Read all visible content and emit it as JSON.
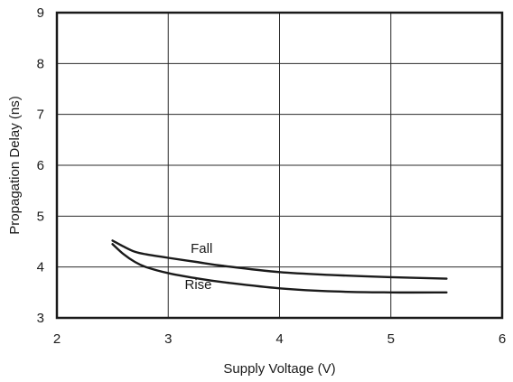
{
  "chart_data": {
    "type": "line",
    "title": "",
    "xlabel": "Supply Voltage (V)",
    "ylabel": "Propagation Delay (ns)",
    "xlim": [
      2,
      6
    ],
    "ylim": [
      3,
      9
    ],
    "x_ticks": [
      "2",
      "3",
      "4",
      "5",
      "6"
    ],
    "y_ticks": [
      "3",
      "4",
      "5",
      "6",
      "7",
      "8",
      "9"
    ],
    "grid": true,
    "legend": "none",
    "series": [
      {
        "name": "Fall",
        "x": [
          2.5,
          2.6,
          2.7,
          2.8,
          3.0,
          3.25,
          3.5,
          4.0,
          4.5,
          5.0,
          5.5
        ],
        "y": [
          4.52,
          4.4,
          4.3,
          4.25,
          4.18,
          4.1,
          4.02,
          3.9,
          3.84,
          3.8,
          3.77
        ]
      },
      {
        "name": "Rise",
        "x": [
          2.5,
          2.6,
          2.7,
          2.8,
          3.0,
          3.25,
          3.5,
          4.0,
          4.5,
          5.0,
          5.5
        ],
        "y": [
          4.45,
          4.25,
          4.1,
          4.0,
          3.88,
          3.78,
          3.7,
          3.58,
          3.52,
          3.5,
          3.5
        ]
      }
    ]
  }
}
